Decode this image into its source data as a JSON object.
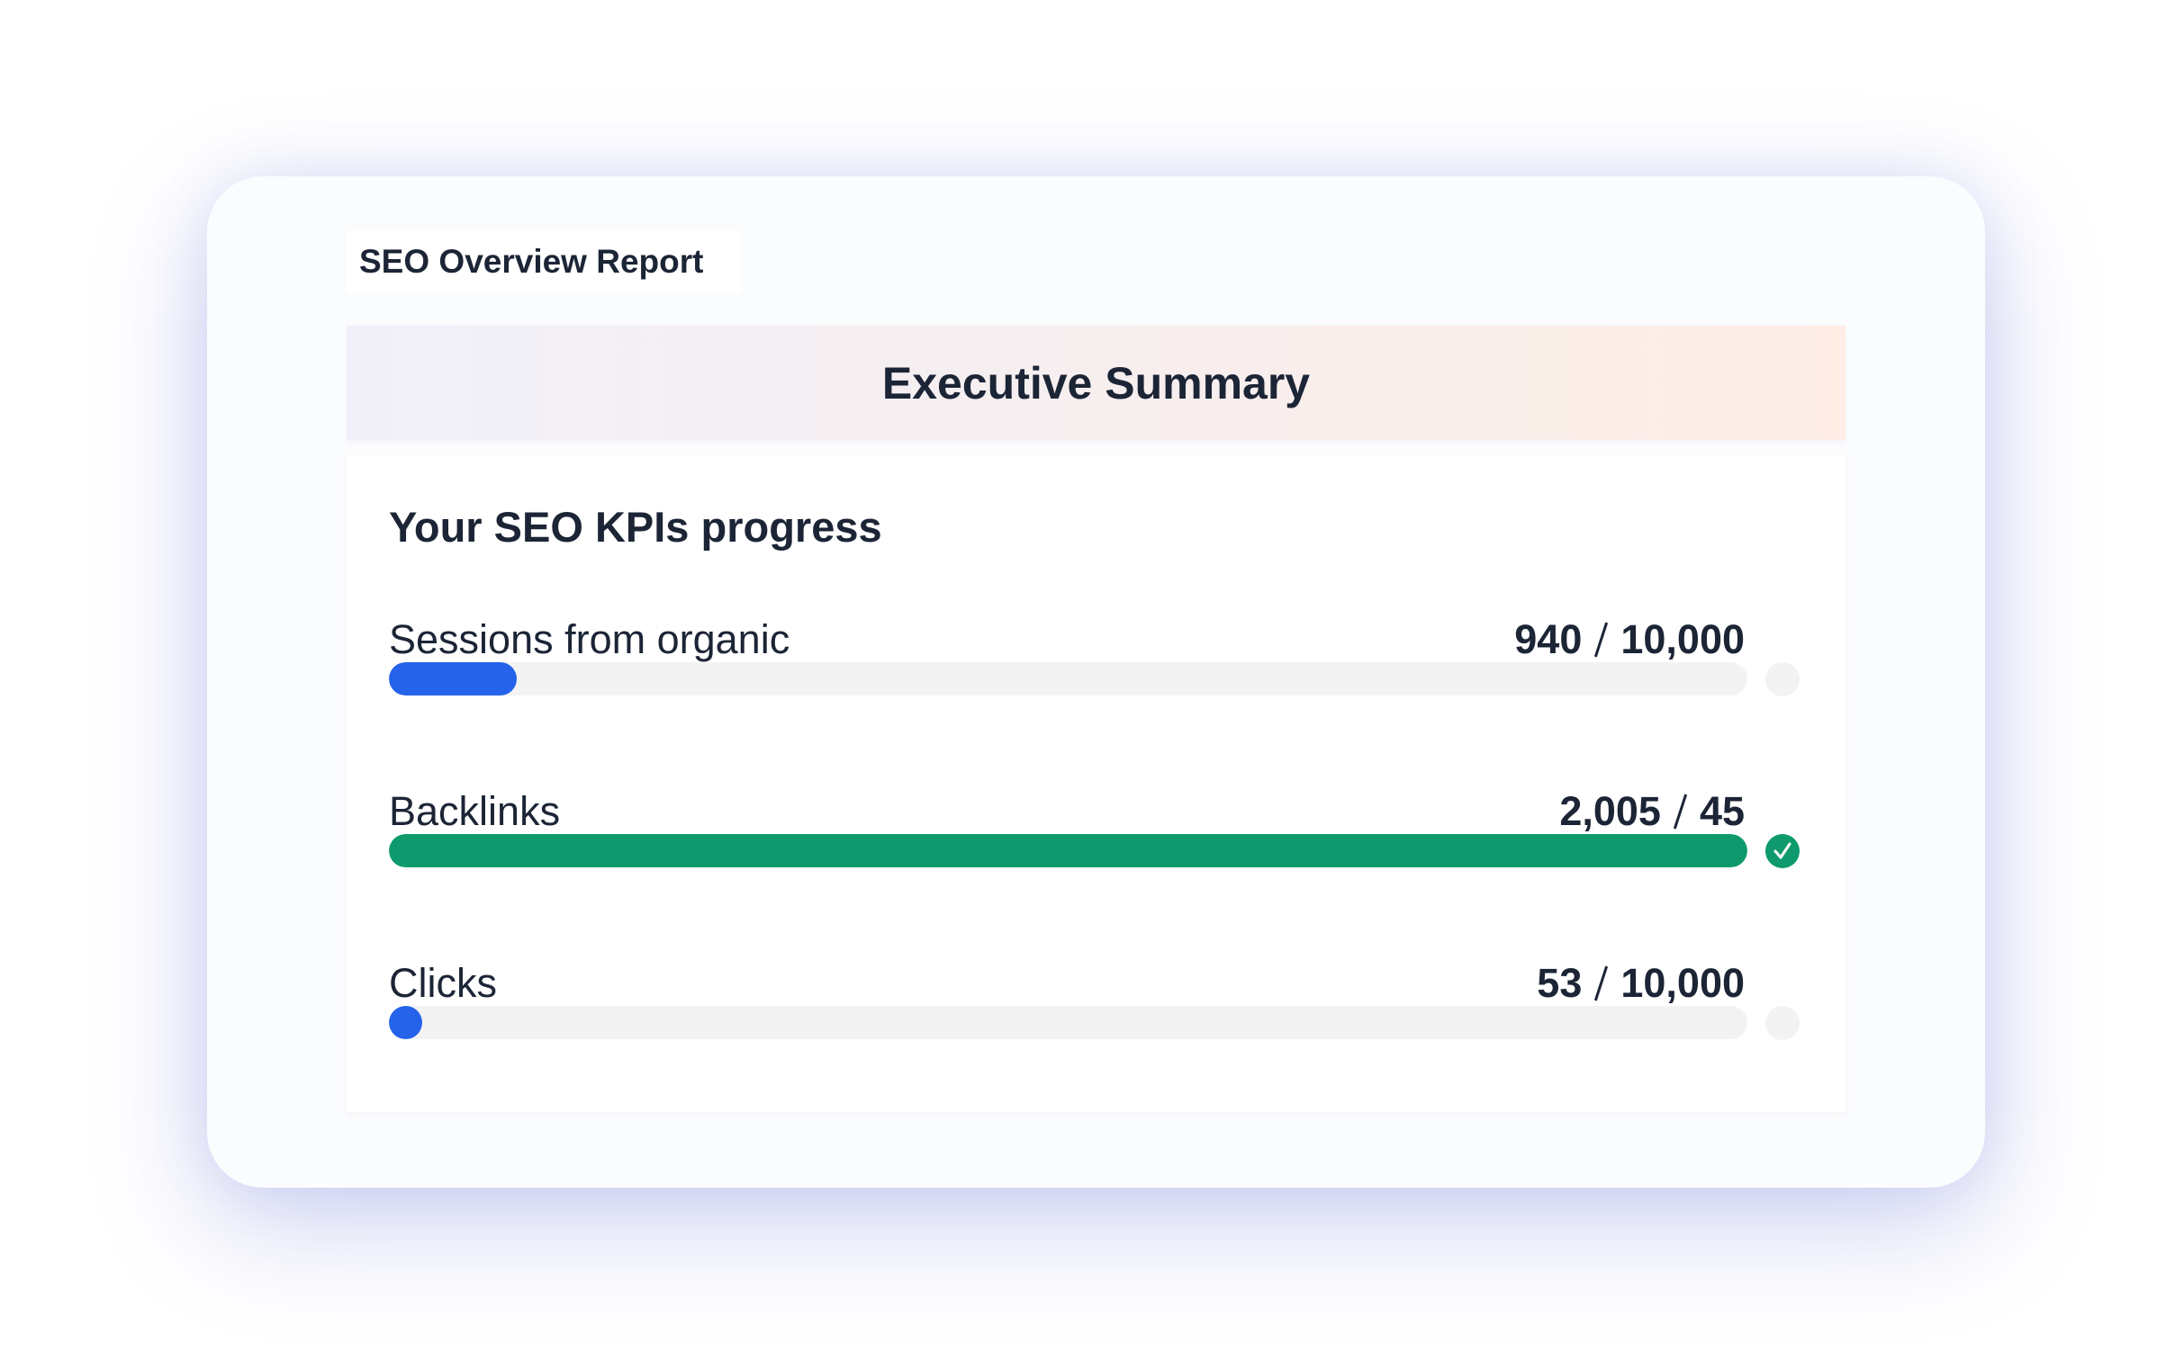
{
  "header": {
    "title": "SEO Overview Report"
  },
  "banner": {
    "title": "Executive Summary"
  },
  "panel": {
    "title": "Your SEO KPIs progress",
    "kpis": [
      {
        "label": "Sessions from organic",
        "current": 940,
        "target": {
          "value": 10000,
          "label": "10,000"
        },
        "color": "#2563eb"
      },
      {
        "label": "Backlinks",
        "current": {
          "value": 2005,
          "label": "2,005"
        },
        "target": 45,
        "color": "#0f9a6e"
      },
      {
        "label": "Clicks",
        "current": 53,
        "target": {
          "value": 10000,
          "label": "10,000"
        },
        "color": "#2563eb"
      }
    ],
    "complete_color": "#0f9a6e",
    "track_color": "#f3f3f3"
  }
}
